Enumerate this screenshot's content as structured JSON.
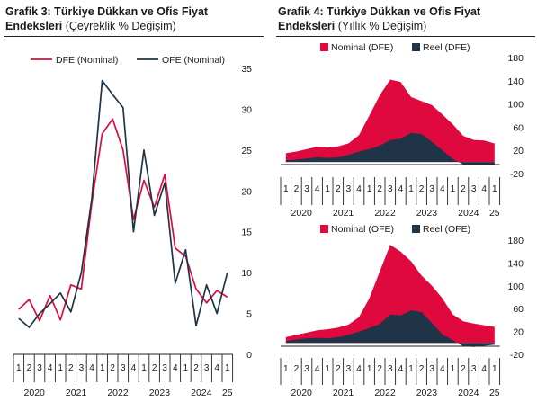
{
  "colors": {
    "red": "#E0093E",
    "navy": "#1F3447",
    "axis": "#222222"
  },
  "left_panel": {
    "title_bold": "Grafik 3: Türkiye Dükkan ve Ofis Fiyat Endeksleri",
    "title_sub": "(Çeyreklik % Değişim)"
  },
  "right_panel": {
    "title_bold": "Grafik 4: Türkiye Dükkan ve Ofis Fiyat Endeksleri",
    "title_sub": "(Yıllık % Değişim)"
  },
  "chart_data": [
    {
      "type": "line",
      "title": "Grafik 3: Türkiye Dükkan ve Ofis Fiyat Endeksleri (Çeyreklik % Değişim)",
      "x": [
        "1",
        "2",
        "3",
        "4",
        "1",
        "2",
        "3",
        "4",
        "1",
        "2",
        "3",
        "4",
        "1",
        "2",
        "3",
        "4",
        "1",
        "2",
        "3",
        "4",
        "1"
      ],
      "years": [
        "2020",
        "2021",
        "2022",
        "2023",
        "2024",
        "25"
      ],
      "ylim": [
        0,
        35
      ],
      "yticks": [
        "0",
        "5",
        "10",
        "15",
        "20",
        "25",
        "30",
        "35"
      ],
      "legend_position": "top",
      "series": [
        {
          "name": "DFE (Nominal)",
          "color": "#E0093E",
          "values": [
            5.5,
            6.7,
            4.1,
            7.2,
            4.2,
            8.5,
            8.0,
            18.5,
            27.0,
            28.8,
            25.0,
            16.5,
            21.3,
            18.0,
            22.0,
            13.0,
            12.0,
            8.0,
            6.3,
            7.8,
            7.0
          ]
        },
        {
          "name": "OFE (Nominal)",
          "color": "#1F3447",
          "values": [
            4.4,
            3.3,
            5.0,
            6.2,
            7.5,
            5.2,
            10.0,
            19.0,
            33.5,
            31.8,
            30.2,
            15.0,
            25.0,
            17.0,
            21.0,
            8.7,
            12.8,
            3.5,
            8.5,
            5.0,
            10.0
          ]
        }
      ]
    },
    {
      "type": "area",
      "title": "Grafik 4: Türkiye Dükkan ve Ofis Fiyat Endeksleri (Yıllık % Değişim)",
      "x": [
        "1",
        "2",
        "3",
        "4",
        "1",
        "2",
        "3",
        "4",
        "1",
        "2",
        "3",
        "4",
        "1",
        "2",
        "3",
        "4",
        "1",
        "2",
        "3",
        "4",
        "1"
      ],
      "years": [
        "2020",
        "2021",
        "2022",
        "2023",
        "2024",
        "25"
      ],
      "ylim": [
        -20,
        180
      ],
      "yticks": [
        "180",
        "140",
        "100",
        "60",
        "20",
        "-20"
      ],
      "legend_position": "top",
      "series": [
        {
          "name": "Nominal (DFE)",
          "color": "#E0093E",
          "values": [
            15,
            18,
            22,
            26,
            25,
            27,
            32,
            46,
            80,
            115,
            142,
            138,
            112,
            105,
            98,
            82,
            65,
            45,
            38,
            37,
            32
          ]
        },
        {
          "name": "Reel (DFE)",
          "color": "#1F3447",
          "values": [
            3,
            4,
            6,
            8,
            7,
            8,
            12,
            18,
            22,
            28,
            38,
            40,
            50,
            48,
            35,
            20,
            5,
            -4,
            -5,
            -5,
            -4
          ]
        }
      ]
    },
    {
      "type": "area",
      "title": "Grafik 4: Türkiye Dükkan ve Ofis Fiyat Endeksleri (Yıllık % Değişim)",
      "x": [
        "1",
        "2",
        "3",
        "4",
        "1",
        "2",
        "3",
        "4",
        "1",
        "2",
        "3",
        "4",
        "1",
        "2",
        "3",
        "4",
        "1",
        "2",
        "3",
        "4",
        "1"
      ],
      "years": [
        "2020",
        "2021",
        "2022",
        "2023",
        "2024",
        "25"
      ],
      "ylim": [
        -20,
        180
      ],
      "yticks": [
        "180",
        "140",
        "100",
        "60",
        "20",
        "-20"
      ],
      "legend_position": "top",
      "series": [
        {
          "name": "Nominal (OFE)",
          "color": "#E0093E",
          "values": [
            10,
            14,
            18,
            22,
            24,
            27,
            32,
            45,
            78,
            125,
            172,
            160,
            143,
            118,
            100,
            78,
            50,
            38,
            34,
            31,
            28
          ]
        },
        {
          "name": "Reel (OFE)",
          "color": "#1F3447",
          "values": [
            3,
            6,
            8,
            9,
            8,
            10,
            14,
            20,
            26,
            33,
            50,
            48,
            57,
            54,
            35,
            15,
            5,
            -6,
            -7,
            -5,
            -3
          ]
        }
      ]
    }
  ]
}
